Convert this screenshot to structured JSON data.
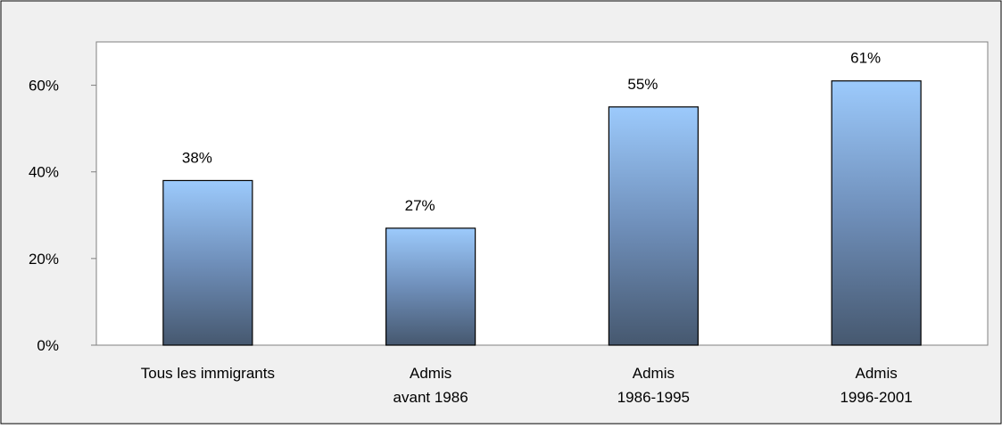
{
  "chart_data": {
    "type": "bar",
    "categories": [
      [
        "Tous les immigrants"
      ],
      [
        "Admis",
        "avant 1986"
      ],
      [
        "Admis",
        "1986-1995"
      ],
      [
        "Admis",
        "1996-2001"
      ]
    ],
    "values": [
      38,
      27,
      55,
      61
    ],
    "value_labels": [
      "38%",
      "27%",
      "55%",
      "61%"
    ],
    "ylim": [
      0,
      70
    ],
    "yticks": [
      {
        "value": 0,
        "label": "0%"
      },
      {
        "value": 20,
        "label": "20%"
      },
      {
        "value": 40,
        "label": "40%"
      },
      {
        "value": 60,
        "label": "60%"
      }
    ],
    "grid": false,
    "title": "",
    "xlabel": "",
    "ylabel": ""
  },
  "colors": {
    "outer_background": "#f0f0f0",
    "plot_background": "#ffffff",
    "bar_top": "#9ccafc",
    "bar_mid": "#6f8fba",
    "bar_bottom": "#46586f",
    "bar_border": "#000000",
    "axis": "#808080"
  }
}
